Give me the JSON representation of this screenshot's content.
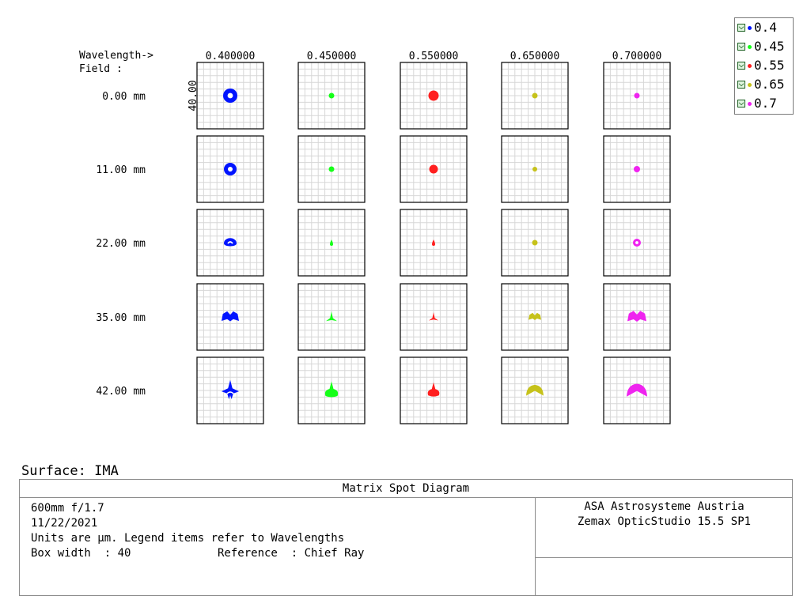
{
  "chart_data": {
    "type": "scatter",
    "title": "Matrix Spot Diagram",
    "header": {
      "wavelength_label": "Wavelength->",
      "field_label": "Field      :"
    },
    "wavelengths": [
      "0.400000",
      "0.450000",
      "0.550000",
      "0.650000",
      "0.700000"
    ],
    "fields": [
      "0.00 mm",
      "11.00 mm",
      "22.00 mm",
      "35.00 mm",
      "42.00 mm"
    ],
    "box_width_label": "40.00",
    "series_colors": [
      "#0014ff",
      "#15ff18",
      "#ff1f1f",
      "#c6c21a",
      "#ef24ef"
    ],
    "spots": [
      [
        {
          "shape": "ring",
          "size": 9
        },
        {
          "shape": "dot",
          "size": 3.5
        },
        {
          "shape": "dot",
          "size": 6.5
        },
        {
          "shape": "dot",
          "size": 3.5
        },
        {
          "shape": "dot",
          "size": 3.5
        }
      ],
      [
        {
          "shape": "ring",
          "size": 8
        },
        {
          "shape": "dot",
          "size": 3.5
        },
        {
          "shape": "dot",
          "size": 5.5
        },
        {
          "shape": "dot",
          "size": 3
        },
        {
          "shape": "dot",
          "size": 4
        }
      ],
      [
        {
          "shape": "blob_ring",
          "size": 8
        },
        {
          "shape": "tear",
          "size": 4
        },
        {
          "shape": "tear",
          "size": 4
        },
        {
          "shape": "dot",
          "size": 3.5
        },
        {
          "shape": "ring",
          "size": 5
        }
      ],
      [
        {
          "shape": "cloud",
          "size": 11
        },
        {
          "shape": "spike",
          "size": 7
        },
        {
          "shape": "spike",
          "size": 6
        },
        {
          "shape": "cloud",
          "size": 8
        },
        {
          "shape": "cloud",
          "size": 12
        }
      ],
      [
        {
          "shape": "star",
          "size": 11
        },
        {
          "shape": "drop",
          "size": 10
        },
        {
          "shape": "drop",
          "size": 9
        },
        {
          "shape": "arch",
          "size": 11
        },
        {
          "shape": "arch",
          "size": 13
        }
      ]
    ]
  },
  "legend": [
    {
      "label": "0.4",
      "color": "#0014ff"
    },
    {
      "label": "0.45",
      "color": "#15ff18"
    },
    {
      "label": "0.55",
      "color": "#ff1f1f"
    },
    {
      "label": "0.65",
      "color": "#c6c21a"
    },
    {
      "label": "0.7",
      "color": "#ef24ef"
    }
  ],
  "surface": "Surface: IMA",
  "info": {
    "title": "Matrix Spot Diagram",
    "left_lines": [
      "600mm f/1.7",
      "11/22/2021",
      "Units are µm. Legend items refer to Wavelengths",
      "Box width  : 40             Reference  : Chief Ray"
    ],
    "right_lines": [
      "ASA Astrosysteme Austria",
      "Zemax OpticStudio 15.5 SP1"
    ]
  }
}
